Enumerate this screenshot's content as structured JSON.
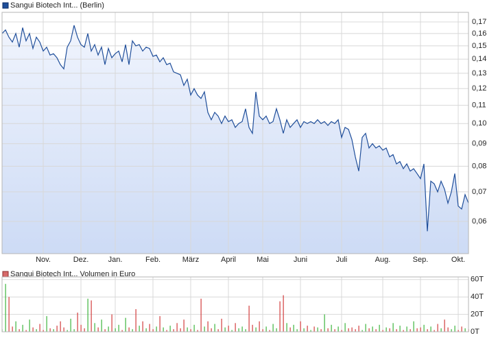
{
  "chart_data": [
    {
      "type": "line",
      "legend": "Sangui Biotech Int... (Berlin)",
      "color": "#1f4e9a",
      "log_scale": true,
      "grid": true,
      "xlim": [
        0,
        136
      ],
      "xticks": [
        {
          "value": 12,
          "label": "Nov."
        },
        {
          "value": 23,
          "label": "Dez."
        },
        {
          "value": 33,
          "label": "Jan."
        },
        {
          "value": 44,
          "label": "Feb."
        },
        {
          "value": 55,
          "label": "März"
        },
        {
          "value": 66,
          "label": "April"
        },
        {
          "value": 76,
          "label": "Mai"
        },
        {
          "value": 87,
          "label": "Juni"
        },
        {
          "value": 99,
          "label": "Juli"
        },
        {
          "value": 111,
          "label": "Aug."
        },
        {
          "value": 122,
          "label": "Sep."
        },
        {
          "value": 133,
          "label": "Okt."
        }
      ],
      "ylim": [
        0.0507,
        0.1787
      ],
      "yticks": [
        {
          "value": 0.06,
          "label": "0,06"
        },
        {
          "value": 0.07,
          "label": "0,07"
        },
        {
          "value": 0.08,
          "label": "0,08"
        },
        {
          "value": 0.09,
          "label": "0,09"
        },
        {
          "value": 0.1,
          "label": "0,10"
        },
        {
          "value": 0.11,
          "label": "0,11"
        },
        {
          "value": 0.12,
          "label": "0,12"
        },
        {
          "value": 0.13,
          "label": "0,13"
        },
        {
          "value": 0.14,
          "label": "0,14"
        },
        {
          "value": 0.15,
          "label": "0,15"
        },
        {
          "value": 0.16,
          "label": "0,16"
        },
        {
          "value": 0.17,
          "label": "0,17"
        }
      ],
      "values": [
        0.16,
        0.163,
        0.157,
        0.153,
        0.16,
        0.149,
        0.165,
        0.154,
        0.16,
        0.148,
        0.157,
        0.153,
        0.146,
        0.149,
        0.143,
        0.144,
        0.141,
        0.136,
        0.133,
        0.149,
        0.154,
        0.167,
        0.157,
        0.151,
        0.149,
        0.16,
        0.146,
        0.151,
        0.143,
        0.149,
        0.136,
        0.148,
        0.141,
        0.144,
        0.146,
        0.138,
        0.151,
        0.136,
        0.154,
        0.15,
        0.151,
        0.146,
        0.149,
        0.148,
        0.142,
        0.143,
        0.138,
        0.141,
        0.136,
        0.137,
        0.131,
        0.13,
        0.129,
        0.122,
        0.126,
        0.116,
        0.12,
        0.116,
        0.114,
        0.118,
        0.106,
        0.102,
        0.106,
        0.104,
        0.1,
        0.104,
        0.101,
        0.102,
        0.098,
        0.1,
        0.101,
        0.108,
        0.098,
        0.095,
        0.118,
        0.104,
        0.102,
        0.104,
        0.1,
        0.101,
        0.108,
        0.102,
        0.095,
        0.102,
        0.098,
        0.1,
        0.102,
        0.098,
        0.101,
        0.1,
        0.101,
        0.1,
        0.102,
        0.1,
        0.101,
        0.099,
        0.101,
        0.1,
        0.102,
        0.093,
        0.098,
        0.097,
        0.092,
        0.084,
        0.078,
        0.093,
        0.095,
        0.088,
        0.09,
        0.088,
        0.089,
        0.087,
        0.088,
        0.084,
        0.085,
        0.081,
        0.082,
        0.079,
        0.081,
        0.078,
        0.079,
        0.077,
        0.075,
        0.081,
        0.057,
        0.074,
        0.073,
        0.07,
        0.074,
        0.071,
        0.066,
        0.07,
        0.077,
        0.065,
        0.064,
        0.069,
        0.066
      ]
    },
    {
      "type": "bar",
      "legend": "Sangui Biotech Int... Volumen in Euro",
      "legend_color": "#d66a6a",
      "up_color": "#3cb43c",
      "down_color": "#d23c3c",
      "grid": true,
      "ylim": [
        0,
        63
      ],
      "yticks": [
        {
          "value": 0,
          "label": "0T"
        },
        {
          "value": 20,
          "label": "20T"
        },
        {
          "value": 40,
          "label": "40T"
        },
        {
          "value": 60,
          "label": "60T"
        }
      ],
      "values": [
        3,
        55,
        40,
        6,
        12,
        3,
        8,
        2,
        14,
        5,
        3,
        9,
        2,
        18,
        4,
        3,
        7,
        12,
        5,
        2,
        15,
        3,
        22,
        8,
        4,
        38,
        36,
        10,
        5,
        14,
        3,
        6,
        20,
        4,
        8,
        2,
        16,
        5,
        3,
        26,
        7,
        12,
        4,
        9,
        3,
        6,
        18,
        5,
        2,
        7,
        3,
        10,
        4,
        14,
        5,
        3,
        8,
        2,
        38,
        6,
        12,
        4,
        9,
        3,
        15,
        5,
        7,
        2,
        10,
        4,
        6,
        3,
        30,
        8,
        5,
        12,
        3,
        6,
        2,
        9,
        4,
        35,
        42,
        10,
        5,
        8,
        3,
        12,
        4,
        7,
        2,
        6,
        5,
        3,
        20,
        4,
        8,
        3,
        6,
        2,
        10,
        4,
        5,
        3,
        7,
        2,
        9,
        4,
        6,
        3,
        8,
        2,
        5,
        4,
        10,
        3,
        7,
        2,
        6,
        3,
        12,
        4,
        5,
        8,
        3,
        6,
        2,
        9,
        4,
        14,
        5,
        3,
        7,
        2,
        6,
        4,
        3
      ]
    }
  ]
}
